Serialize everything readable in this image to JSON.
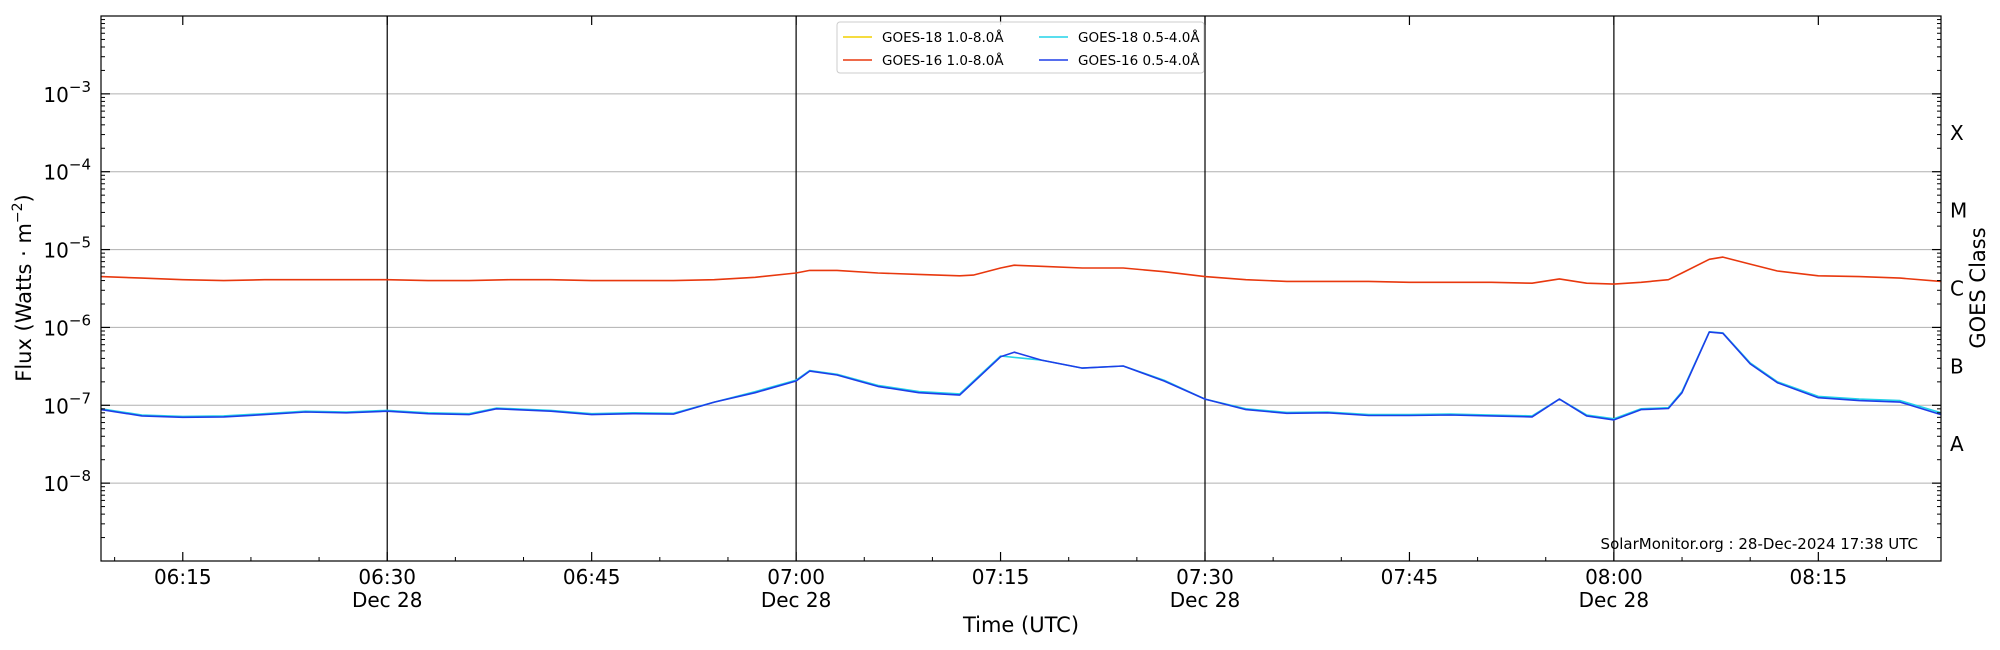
{
  "chart_data": {
    "type": "line",
    "xlabel": "Time (UTC)",
    "ylabel_main": "Flux (Watts · m",
    "ylabel_sup": "−2",
    "ylabel_close": ")",
    "right_ylabel": "GOES Class",
    "watermark": "SolarMonitor.org : 28-Dec-2024 17:38 UTC",
    "x_range": [
      "06:09",
      "08:24"
    ],
    "y_scale": "log",
    "ylim": [
      1e-09,
      0.01
    ],
    "grid": "horizontal at each decade",
    "legend_placement": "top-center",
    "x_ticks": [
      {
        "time": "06:15",
        "label": "06:15",
        "date": ""
      },
      {
        "time": "06:30",
        "label": "06:30",
        "date": "Dec 28"
      },
      {
        "time": "06:45",
        "label": "06:45",
        "date": ""
      },
      {
        "time": "07:00",
        "label": "07:00",
        "date": "Dec 28"
      },
      {
        "time": "07:15",
        "label": "07:15",
        "date": ""
      },
      {
        "time": "07:30",
        "label": "07:30",
        "date": "Dec 28"
      },
      {
        "time": "07:45",
        "label": "07:45",
        "date": ""
      },
      {
        "time": "08:00",
        "label": "08:00",
        "date": "Dec 28"
      },
      {
        "time": "08:15",
        "label": "08:15",
        "date": ""
      }
    ],
    "vertical_lines": [
      "06:30",
      "07:00",
      "07:30",
      "08:00"
    ],
    "y_ticks": [
      {
        "value": 1e-08,
        "base": "10",
        "exp": "−8"
      },
      {
        "value": 1e-07,
        "base": "10",
        "exp": "−7"
      },
      {
        "value": 1e-06,
        "base": "10",
        "exp": "−6"
      },
      {
        "value": 1e-05,
        "base": "10",
        "exp": "−5"
      },
      {
        "value": 0.0001,
        "base": "10",
        "exp": "−4"
      },
      {
        "value": 0.001,
        "base": "10",
        "exp": "−3"
      }
    ],
    "goes_classes": [
      {
        "label": "A",
        "value": 3.16e-08
      },
      {
        "label": "B",
        "value": 3.16e-07
      },
      {
        "label": "C",
        "value": 3.16e-06
      },
      {
        "label": "M",
        "value": 3.16e-05
      },
      {
        "label": "X",
        "value": 0.000316
      }
    ],
    "series": [
      {
        "name": "GOES-18 1.0-8.0Å",
        "color": "#f2d000",
        "x": [],
        "y": []
      },
      {
        "name": "GOES-18 0.5-4.0Å",
        "color": "#22d3e8",
        "x": [
          "06:09",
          "06:12",
          "06:15",
          "06:18",
          "06:21",
          "06:24",
          "06:27",
          "06:30",
          "06:33",
          "06:36",
          "06:38",
          "06:42",
          "06:45",
          "06:48",
          "06:51",
          "06:54",
          "06:57",
          "07:00",
          "07:01",
          "07:03",
          "07:06",
          "07:09",
          "07:12",
          "07:15",
          "07:18",
          "07:21",
          "07:24",
          "07:27",
          "07:30",
          "07:33",
          "07:36",
          "07:39",
          "07:42",
          "07:45",
          "07:48",
          "07:51",
          "07:54",
          "07:56",
          "07:58",
          "08:00",
          "08:02",
          "08:04",
          "08:05",
          "08:07",
          "08:08",
          "08:10",
          "08:12",
          "08:15",
          "08:18",
          "08:21",
          "08:24"
        ],
        "y": [
          9e-08,
          7.5e-08,
          7.2e-08,
          7.3e-08,
          7.8e-08,
          8.4e-08,
          8.2e-08,
          8.6e-08,
          8e-08,
          7.8e-08,
          9.2e-08,
          8.6e-08,
          7.8e-08,
          8e-08,
          7.9e-08,
          1.1e-07,
          1.5e-07,
          2.1e-07,
          2.8e-07,
          2.5e-07,
          1.8e-07,
          1.5e-07,
          1.4e-07,
          4.3e-07,
          3.8e-07,
          3e-07,
          3.2e-07,
          2.1e-07,
          1.2e-07,
          9e-08,
          8.1e-08,
          8.2e-08,
          7.6e-08,
          7.6e-08,
          7.7e-08,
          7.5e-08,
          7.3e-08,
          1.2e-07,
          7.5e-08,
          6.7e-08,
          9e-08,
          9.3e-08,
          1.5e-07,
          8.8e-07,
          8.5e-07,
          3.5e-07,
          2e-07,
          1.3e-07,
          1.2e-07,
          1.15e-07,
          8e-08
        ]
      },
      {
        "name": "GOES-16 1.0-8.0Å",
        "color": "#e8380e",
        "x": [
          "06:09",
          "06:12",
          "06:15",
          "06:18",
          "06:21",
          "06:24",
          "06:27",
          "06:30",
          "06:33",
          "06:36",
          "06:39",
          "06:42",
          "06:45",
          "06:48",
          "06:51",
          "06:54",
          "06:57",
          "07:00",
          "07:01",
          "07:03",
          "07:06",
          "07:09",
          "07:12",
          "07:13",
          "07:15",
          "07:16",
          "07:18",
          "07:21",
          "07:24",
          "07:27",
          "07:30",
          "07:33",
          "07:36",
          "07:39",
          "07:42",
          "07:45",
          "07:48",
          "07:51",
          "07:54",
          "07:56",
          "07:58",
          "08:00",
          "08:02",
          "08:04",
          "08:05",
          "08:07",
          "08:08",
          "08:10",
          "08:12",
          "08:15",
          "08:18",
          "08:21",
          "08:24"
        ],
        "y": [
          4.5e-06,
          4.3e-06,
          4.1e-06,
          4e-06,
          4.1e-06,
          4.1e-06,
          4.1e-06,
          4.1e-06,
          4e-06,
          4e-06,
          4.1e-06,
          4.1e-06,
          4e-06,
          4e-06,
          4e-06,
          4.1e-06,
          4.4e-06,
          5e-06,
          5.4e-06,
          5.4e-06,
          5e-06,
          4.8e-06,
          4.6e-06,
          4.7e-06,
          5.8e-06,
          6.3e-06,
          6.1e-06,
          5.8e-06,
          5.8e-06,
          5.2e-06,
          4.5e-06,
          4.1e-06,
          3.9e-06,
          3.9e-06,
          3.9e-06,
          3.8e-06,
          3.8e-06,
          3.8e-06,
          3.7e-06,
          4.2e-06,
          3.7e-06,
          3.6e-06,
          3.8e-06,
          4.1e-06,
          5e-06,
          7.5e-06,
          8e-06,
          6.5e-06,
          5.3e-06,
          4.6e-06,
          4.5e-06,
          4.3e-06,
          3.9e-06
        ]
      },
      {
        "name": "GOES-16 0.5-4.0Å",
        "color": "#1e3ee8",
        "x": [
          "06:09",
          "06:12",
          "06:15",
          "06:18",
          "06:21",
          "06:24",
          "06:27",
          "06:30",
          "06:33",
          "06:36",
          "06:38",
          "06:42",
          "06:45",
          "06:48",
          "06:51",
          "06:54",
          "06:57",
          "07:00",
          "07:01",
          "07:03",
          "07:06",
          "07:09",
          "07:12",
          "07:15",
          "07:16",
          "07:18",
          "07:21",
          "07:24",
          "07:27",
          "07:30",
          "07:33",
          "07:36",
          "07:39",
          "07:42",
          "07:45",
          "07:48",
          "07:51",
          "07:54",
          "07:56",
          "07:58",
          "08:00",
          "08:02",
          "08:04",
          "08:05",
          "08:07",
          "08:08",
          "08:10",
          "08:12",
          "08:15",
          "08:18",
          "08:21",
          "08:24"
        ],
        "y": [
          8.8e-08,
          7.3e-08,
          7e-08,
          7.1e-08,
          7.6e-08,
          8.2e-08,
          8e-08,
          8.4e-08,
          7.8e-08,
          7.6e-08,
          9e-08,
          8.4e-08,
          7.6e-08,
          7.8e-08,
          7.7e-08,
          1.1e-07,
          1.45e-07,
          2.05e-07,
          2.75e-07,
          2.45e-07,
          1.75e-07,
          1.45e-07,
          1.35e-07,
          4.2e-07,
          4.8e-07,
          3.8e-07,
          3e-07,
          3.2e-07,
          2.05e-07,
          1.2e-07,
          8.8e-08,
          7.9e-08,
          8e-08,
          7.4e-08,
          7.4e-08,
          7.5e-08,
          7.3e-08,
          7.1e-08,
          1.2e-07,
          7.3e-08,
          6.5e-08,
          8.8e-08,
          9.1e-08,
          1.45e-07,
          8.7e-07,
          8.4e-07,
          3.4e-07,
          1.95e-07,
          1.25e-07,
          1.15e-07,
          1.1e-07,
          7.6e-08
        ]
      }
    ]
  }
}
